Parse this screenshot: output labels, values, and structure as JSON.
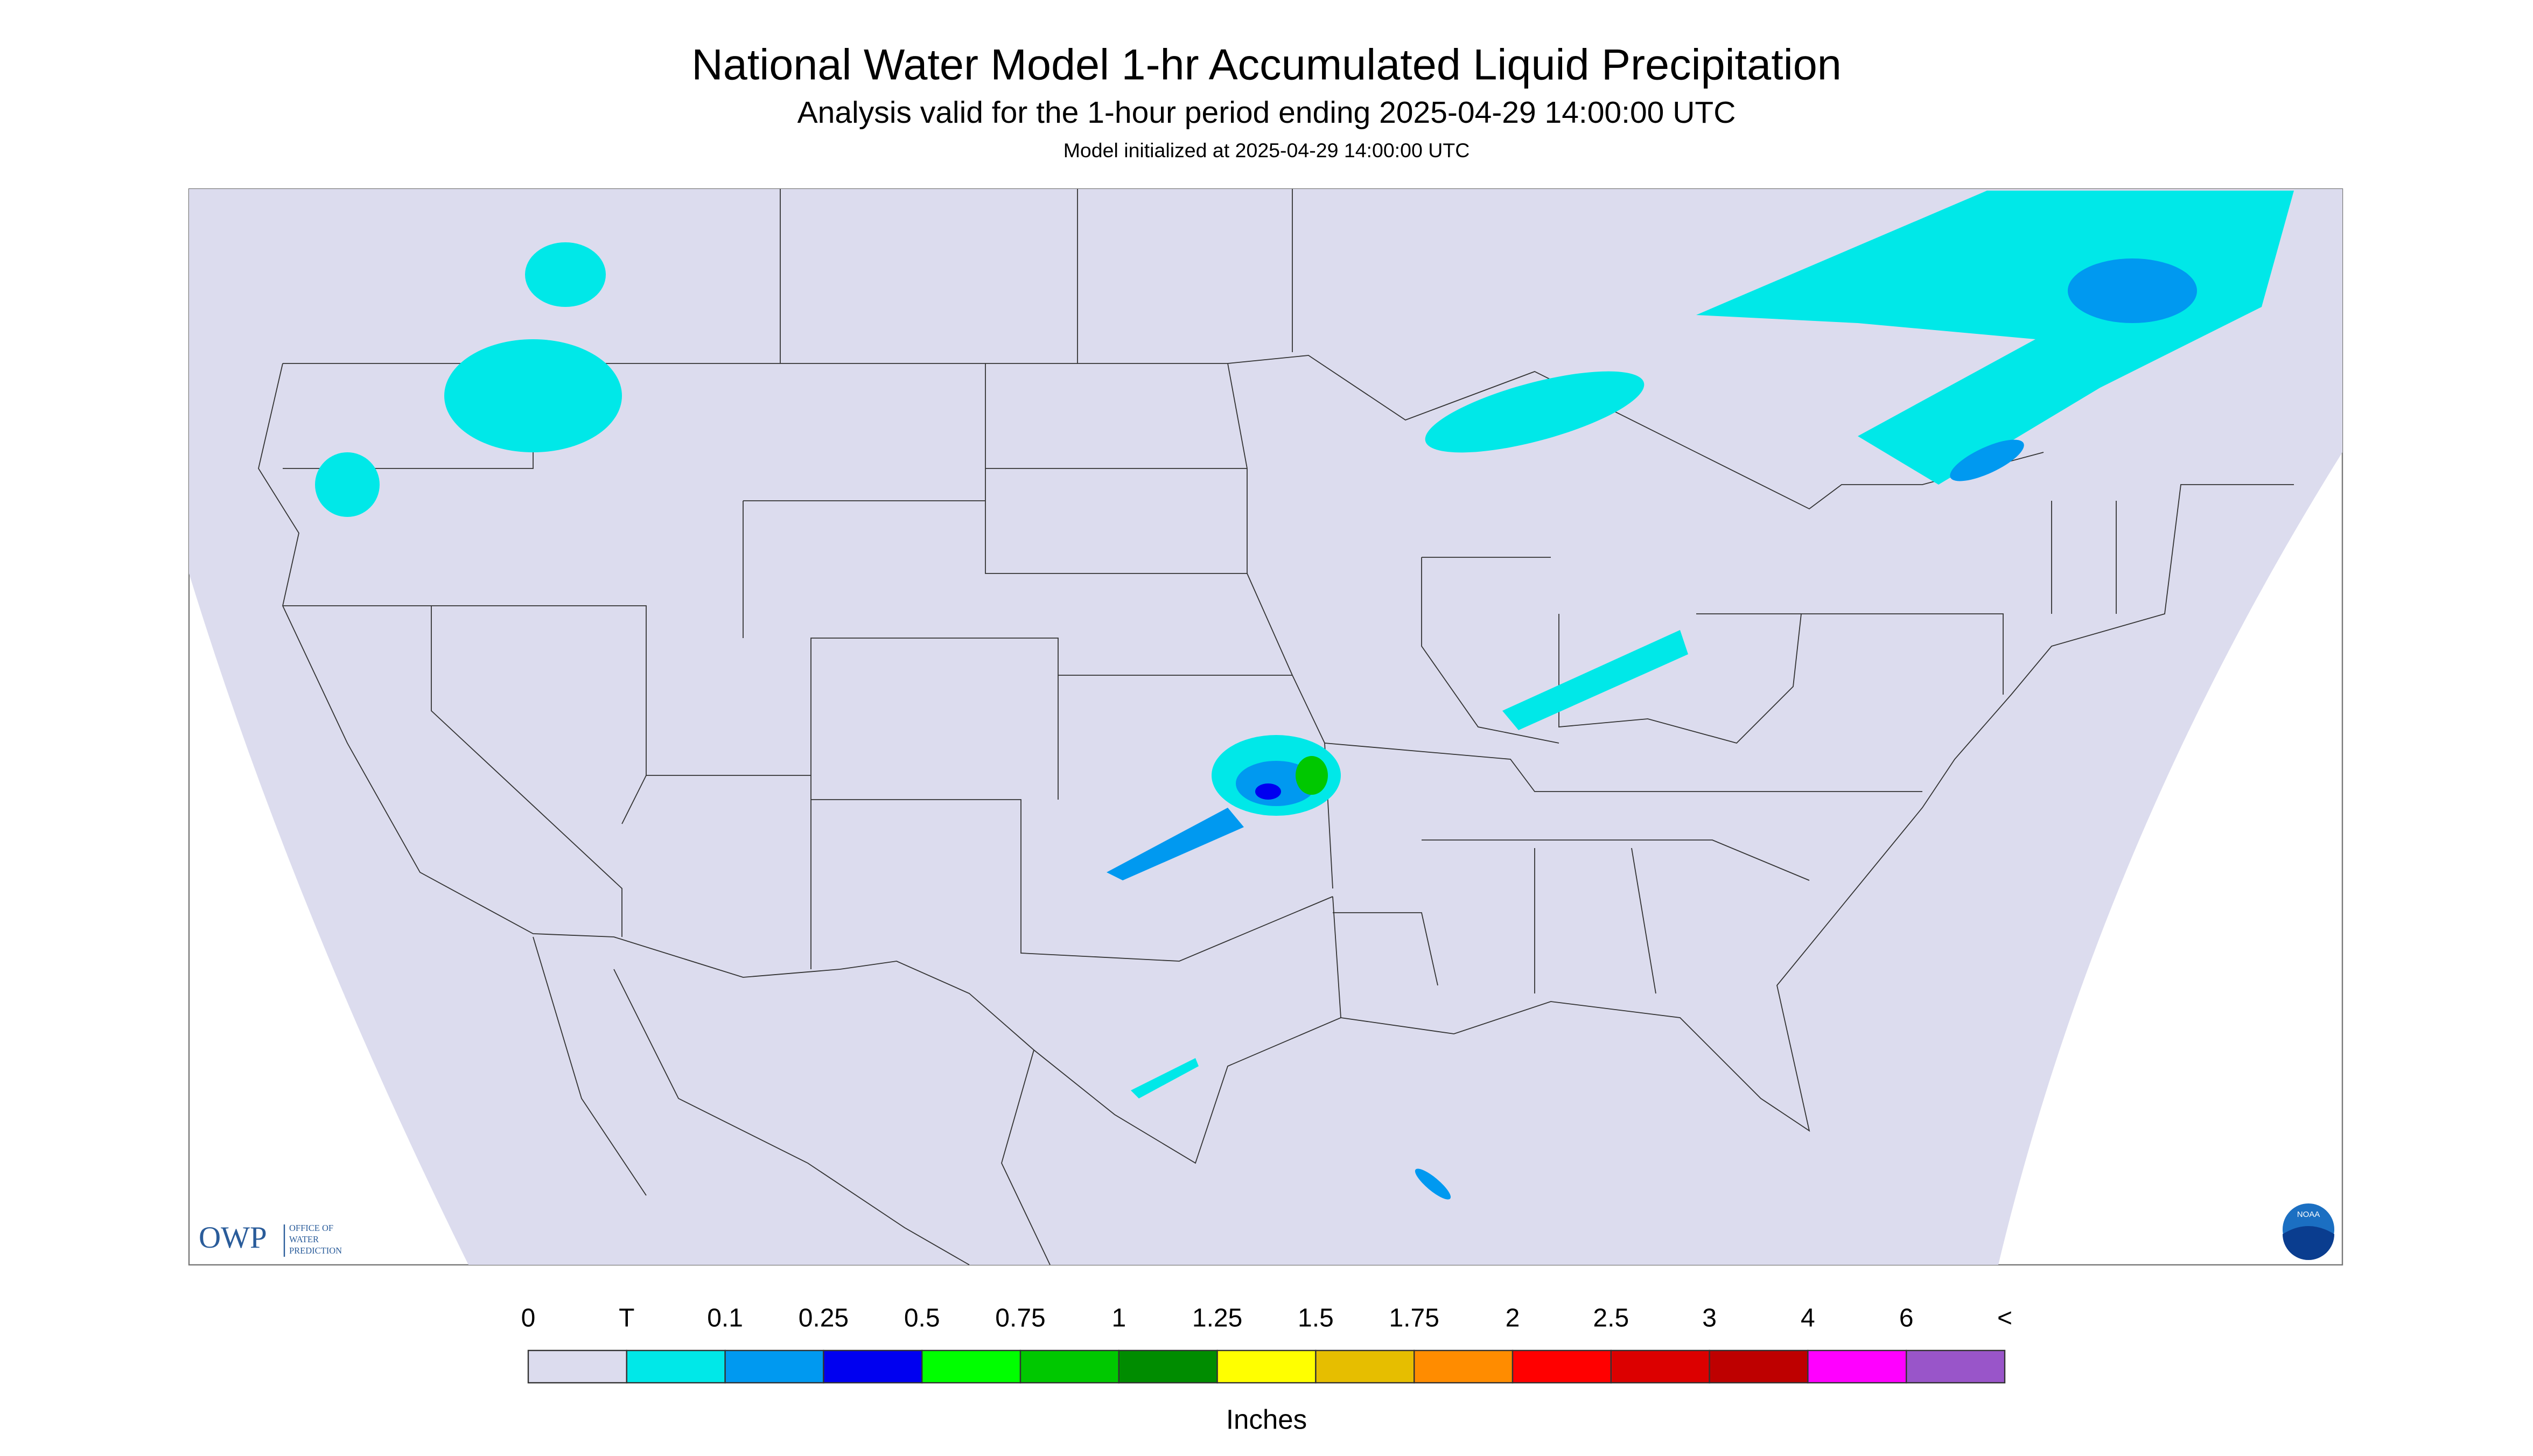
{
  "header": {
    "title": "National Water Model 1-hr Accumulated Liquid Precipitation",
    "subtitle": "Analysis valid for the 1-hour period ending 2025-04-29 14:00:00 UTC",
    "note": "Model initialized at 2025-04-29 14:00:00 UTC"
  },
  "map": {
    "logo_left": "OWP",
    "logo_left_sub": [
      "OFFICE OF",
      "WATER",
      "PREDICTION"
    ],
    "logo_right": "NOAA"
  },
  "legend": {
    "labels": [
      "0",
      "T",
      "0.1",
      "0.25",
      "0.5",
      "0.75",
      "1",
      "1.25",
      "1.5",
      "1.75",
      "2",
      "2.5",
      "3",
      "4",
      "6",
      "<"
    ],
    "colors": [
      "#dcdcee",
      "#00e8e8",
      "#0099f0",
      "#0000f0",
      "#00ff00",
      "#00c800",
      "#008c00",
      "#ffff00",
      "#e6be00",
      "#ff8c00",
      "#ff0000",
      "#dc0000",
      "#be0000",
      "#ff00ff",
      "#9955c9"
    ],
    "units": "Inches"
  }
}
